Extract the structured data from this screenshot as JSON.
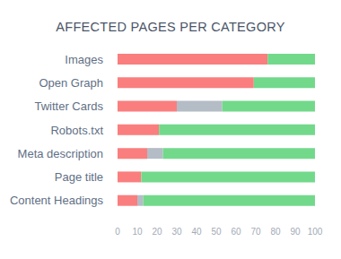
{
  "chart_data": {
    "type": "bar",
    "title": "AFFECTED PAGES PER CATEGORY",
    "orientation": "horizontal",
    "stacked": true,
    "grid": false,
    "categories": [
      "Images",
      "Open Graph",
      "Twitter Cards",
      "Robots.txt",
      "Meta description",
      "Page title",
      "Content Headings"
    ],
    "series": [
      {
        "color": "#fa7e7e",
        "values": [
          76,
          69,
          30,
          21,
          15,
          12,
          10
        ]
      },
      {
        "color": "#b4bcc6",
        "values": [
          0,
          0,
          23,
          0,
          8,
          0,
          3
        ]
      },
      {
        "color": "#72d98b",
        "values": [
          24,
          31,
          47,
          79,
          77,
          88,
          87
        ]
      }
    ],
    "xlim": [
      0,
      100
    ],
    "xticks": [
      0,
      10,
      20,
      30,
      40,
      50,
      60,
      70,
      80,
      90,
      100
    ]
  }
}
